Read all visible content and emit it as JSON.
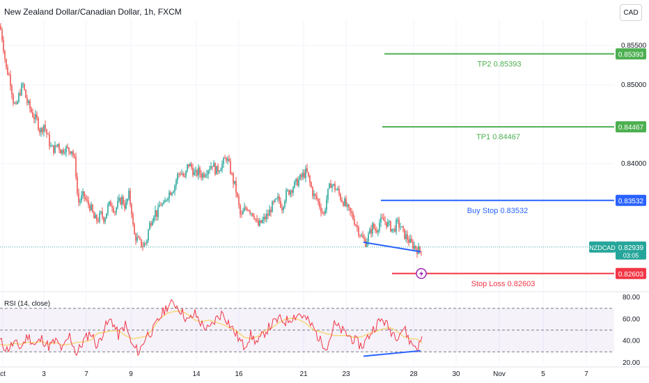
{
  "header": {
    "title": "New Zealand Dollar/Canadian Dollar, 1h, FXCM",
    "currency_button": "CAD"
  },
  "rsi": {
    "label": "RSI (14, close)"
  },
  "colors": {
    "up": "#26a69a",
    "down": "#ef5350",
    "tp": "#4caf50",
    "entry": "#2962ff",
    "stop": "#f23645",
    "rsi": "#f23645",
    "rsi_ma": "#f7d77a",
    "trendline": "#2962ff"
  },
  "chart_data": [
    {
      "type": "line",
      "symbol": "NZDCAD",
      "x_tick_labels": [
        "ct",
        "3",
        "7",
        "9",
        "14",
        "16",
        "21",
        "23",
        "28",
        "30",
        "Nov",
        "5",
        "7"
      ],
      "y_tick_labels": [
        "0.85500",
        "0.85000",
        "0.84000"
      ],
      "ylim": [
        0.826,
        0.858
      ],
      "price_path": [
        [
          0,
          0.8575
        ],
        [
          4,
          0.8555
        ],
        [
          9,
          0.852
        ],
        [
          14,
          0.851
        ],
        [
          19,
          0.848
        ],
        [
          23,
          0.847
        ],
        [
          28,
          0.849
        ],
        [
          33,
          0.85
        ],
        [
          38,
          0.848
        ],
        [
          43,
          0.847
        ],
        [
          48,
          0.846
        ],
        [
          53,
          0.8455
        ],
        [
          58,
          0.844
        ],
        [
          63,
          0.845
        ],
        [
          68,
          0.8435
        ],
        [
          73,
          0.842
        ],
        [
          78,
          0.8418
        ],
        [
          83,
          0.8425
        ],
        [
          88,
          0.8415
        ],
        [
          93,
          0.842
        ],
        [
          98,
          0.8417
        ],
        [
          103,
          0.8418
        ],
        [
          108,
          0.84
        ],
        [
          112,
          0.835
        ],
        [
          116,
          0.8355
        ],
        [
          120,
          0.836
        ],
        [
          125,
          0.835
        ],
        [
          130,
          0.8345
        ],
        [
          135,
          0.833
        ],
        [
          140,
          0.8328
        ],
        [
          145,
          0.8335
        ],
        [
          150,
          0.833
        ],
        [
          155,
          0.8345
        ],
        [
          160,
          0.835
        ],
        [
          165,
          0.834
        ],
        [
          170,
          0.835
        ],
        [
          175,
          0.8355
        ],
        [
          180,
          0.8345
        ],
        [
          185,
          0.836
        ],
        [
          189,
          0.834
        ],
        [
          192,
          0.831
        ],
        [
          196,
          0.8305
        ],
        [
          200,
          0.83
        ],
        [
          205,
          0.8296
        ],
        [
          210,
          0.83
        ],
        [
          214,
          0.832
        ],
        [
          218,
          0.833
        ],
        [
          222,
          0.834
        ],
        [
          226,
          0.8335
        ],
        [
          230,
          0.835
        ],
        [
          235,
          0.8345
        ],
        [
          240,
          0.836
        ],
        [
          245,
          0.8365
        ],
        [
          250,
          0.837
        ],
        [
          255,
          0.8385
        ],
        [
          260,
          0.839
        ],
        [
          265,
          0.838
        ],
        [
          270,
          0.84
        ],
        [
          275,
          0.8395
        ],
        [
          280,
          0.8385
        ],
        [
          285,
          0.839
        ],
        [
          290,
          0.8385
        ],
        [
          295,
          0.839
        ],
        [
          300,
          0.8395
        ],
        [
          305,
          0.84
        ],
        [
          310,
          0.839
        ],
        [
          315,
          0.8395
        ],
        [
          320,
          0.84
        ],
        [
          325,
          0.8408
        ],
        [
          330,
          0.8395
        ],
        [
          334,
          0.838
        ],
        [
          338,
          0.837
        ],
        [
          342,
          0.835
        ],
        [
          346,
          0.833
        ],
        [
          350,
          0.834
        ],
        [
          355,
          0.8345
        ],
        [
          360,
          0.834
        ],
        [
          365,
          0.8335
        ],
        [
          370,
          0.832
        ],
        [
          375,
          0.8325
        ],
        [
          380,
          0.833
        ],
        [
          385,
          0.8335
        ],
        [
          390,
          0.8345
        ],
        [
          395,
          0.835
        ],
        [
          400,
          0.8355
        ],
        [
          405,
          0.8345
        ],
        [
          410,
          0.836
        ],
        [
          415,
          0.8365
        ],
        [
          420,
          0.837
        ],
        [
          425,
          0.8375
        ],
        [
          430,
          0.838
        ],
        [
          435,
          0.8385
        ],
        [
          440,
          0.839
        ],
        [
          445,
          0.8375
        ],
        [
          450,
          0.836
        ],
        [
          455,
          0.8355
        ],
        [
          460,
          0.8345
        ],
        [
          465,
          0.8335
        ],
        [
          470,
          0.836
        ],
        [
          475,
          0.8375
        ],
        [
          480,
          0.837
        ],
        [
          485,
          0.8365
        ],
        [
          490,
          0.8355
        ],
        [
          495,
          0.835
        ],
        [
          500,
          0.834
        ],
        [
          505,
          0.8335
        ],
        [
          510,
          0.8325
        ],
        [
          515,
          0.8315
        ],
        [
          520,
          0.8305
        ],
        [
          525,
          0.83
        ],
        [
          530,
          0.831
        ],
        [
          535,
          0.832
        ],
        [
          540,
          0.8315
        ],
        [
          545,
          0.8325
        ],
        [
          550,
          0.8328
        ],
        [
          555,
          0.8325
        ],
        [
          560,
          0.832
        ],
        [
          565,
          0.8315
        ],
        [
          570,
          0.8325
        ],
        [
          575,
          0.832
        ],
        [
          580,
          0.831
        ],
        [
          585,
          0.8305
        ],
        [
          590,
          0.8298
        ],
        [
          595,
          0.8295
        ],
        [
          600,
          0.829
        ],
        [
          603,
          0.8289
        ],
        [
          606,
          0.8294
        ]
      ],
      "levels": [
        {
          "label": "TP2 0.85393",
          "price_tag": "0.85393",
          "value": 0.85393,
          "color": "#4caf50"
        },
        {
          "label": "TP1 0.84467",
          "price_tag": "0.84467",
          "value": 0.84467,
          "color": "#4caf50"
        },
        {
          "label": "Buy Stop 0.83532",
          "price_tag": "0.83532",
          "value": 0.83532,
          "color": "#2962ff"
        },
        {
          "label": "Stop Loss 0.82603",
          "price_tag": "0.82603",
          "value": 0.82603,
          "color": "#f23645"
        }
      ],
      "current_price": {
        "symbol": "NZDCAD",
        "value": 0.82939,
        "price_tag": "0.82939",
        "countdown": "03:05"
      },
      "annotations": [
        {
          "type": "trendline",
          "from": [
            522,
            0.83
          ],
          "to": [
            604,
            0.8288
          ],
          "color": "#2962ff"
        }
      ]
    },
    {
      "type": "line",
      "name": "RSI (14, close)",
      "ylim": [
        20,
        80
      ],
      "y_tick_labels": [
        "80.00",
        "60.00",
        "40.00",
        "20.00"
      ],
      "bands": [
        30,
        50,
        70
      ],
      "values_path": [
        [
          0,
          40
        ],
        [
          10,
          32
        ],
        [
          20,
          38
        ],
        [
          30,
          34
        ],
        [
          40,
          45
        ],
        [
          50,
          36
        ],
        [
          60,
          42
        ],
        [
          70,
          35
        ],
        [
          80,
          40
        ],
        [
          90,
          32
        ],
        [
          100,
          45
        ],
        [
          110,
          28
        ],
        [
          120,
          40
        ],
        [
          130,
          48
        ],
        [
          140,
          35
        ],
        [
          150,
          52
        ],
        [
          160,
          60
        ],
        [
          170,
          45
        ],
        [
          180,
          55
        ],
        [
          190,
          35
        ],
        [
          200,
          30
        ],
        [
          210,
          45
        ],
        [
          220,
          50
        ],
        [
          230,
          62
        ],
        [
          240,
          72
        ],
        [
          250,
          75
        ],
        [
          260,
          68
        ],
        [
          270,
          58
        ],
        [
          280,
          65
        ],
        [
          290,
          55
        ],
        [
          300,
          50
        ],
        [
          310,
          60
        ],
        [
          320,
          66
        ],
        [
          330,
          55
        ],
        [
          340,
          45
        ],
        [
          350,
          35
        ],
        [
          360,
          45
        ],
        [
          370,
          38
        ],
        [
          380,
          48
        ],
        [
          390,
          55
        ],
        [
          400,
          60
        ],
        [
          410,
          58
        ],
        [
          420,
          62
        ],
        [
          430,
          65
        ],
        [
          440,
          60
        ],
        [
          450,
          52
        ],
        [
          460,
          40
        ],
        [
          470,
          35
        ],
        [
          480,
          55
        ],
        [
          490,
          50
        ],
        [
          500,
          45
        ],
        [
          510,
          40
        ],
        [
          520,
          35
        ],
        [
          530,
          45
        ],
        [
          540,
          55
        ],
        [
          550,
          60
        ],
        [
          560,
          50
        ],
        [
          570,
          45
        ],
        [
          580,
          52
        ],
        [
          590,
          38
        ],
        [
          600,
          34
        ],
        [
          606,
          42
        ]
      ],
      "annotations": [
        {
          "type": "trendline",
          "from": [
            522,
            26
          ],
          "to": [
            604,
            31
          ],
          "color": "#2962ff"
        }
      ]
    }
  ]
}
